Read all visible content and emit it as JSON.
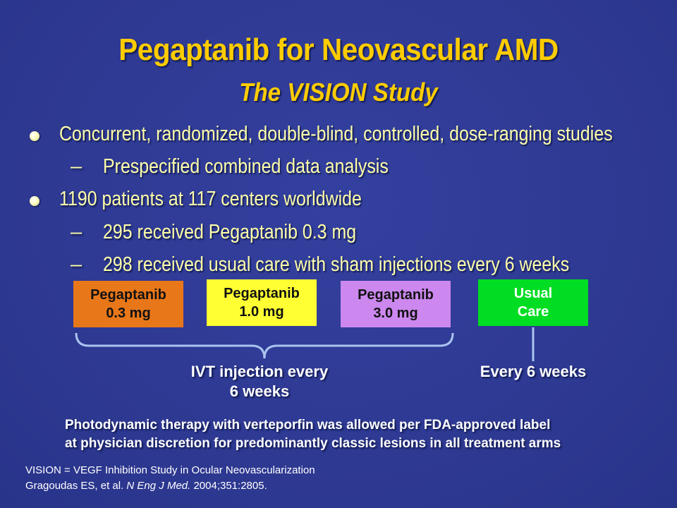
{
  "title": "Pegaptanib for Neovascular AMD",
  "subtitle": "The VISION Study",
  "bullets": [
    {
      "text": "Concurrent, randomized, double-blind, controlled, dose-ranging studies",
      "subs": [
        "Prespecified combined data analysis"
      ]
    },
    {
      "text": "1190 patients at 117 centers worldwide",
      "subs": [
        "295 received Pegaptanib 0.3 mg",
        "298 received usual care with sham injections every 6 weeks"
      ]
    }
  ],
  "dash": "–",
  "arms": [
    {
      "line1": "Pegaptanib",
      "line2": "0.3 mg",
      "color": "#e8771a"
    },
    {
      "line1": "Pegaptanib",
      "line2": "1.0 mg",
      "color": "#ffff33"
    },
    {
      "line1": "Pegaptanib",
      "line2": "3.0 mg",
      "color": "#cc88ee"
    },
    {
      "line1": "Usual",
      "line2": "Care",
      "color": "#00dd22"
    }
  ],
  "ivt_label_line1": "IVT injection every",
  "ivt_label_line2": "6 weeks",
  "usual_label": "Every 6 weeks",
  "note_line1": "Photodynamic therapy with verteporfin was allowed per FDA-approved label",
  "note_line2": "at physician discretion for predominantly classic lesions in all treatment arms",
  "footnote": "VISION = VEGF Inhibition Study in Ocular Neovascularization",
  "citation_authors": "Gragoudas ES, et al. ",
  "citation_journal": "N Eng J Med.",
  "citation_rest": " 2004;351:2805.",
  "colors": {
    "background": "#2e3a94",
    "title": "#ffcc00",
    "bullet_text": "#ffffaa"
  }
}
